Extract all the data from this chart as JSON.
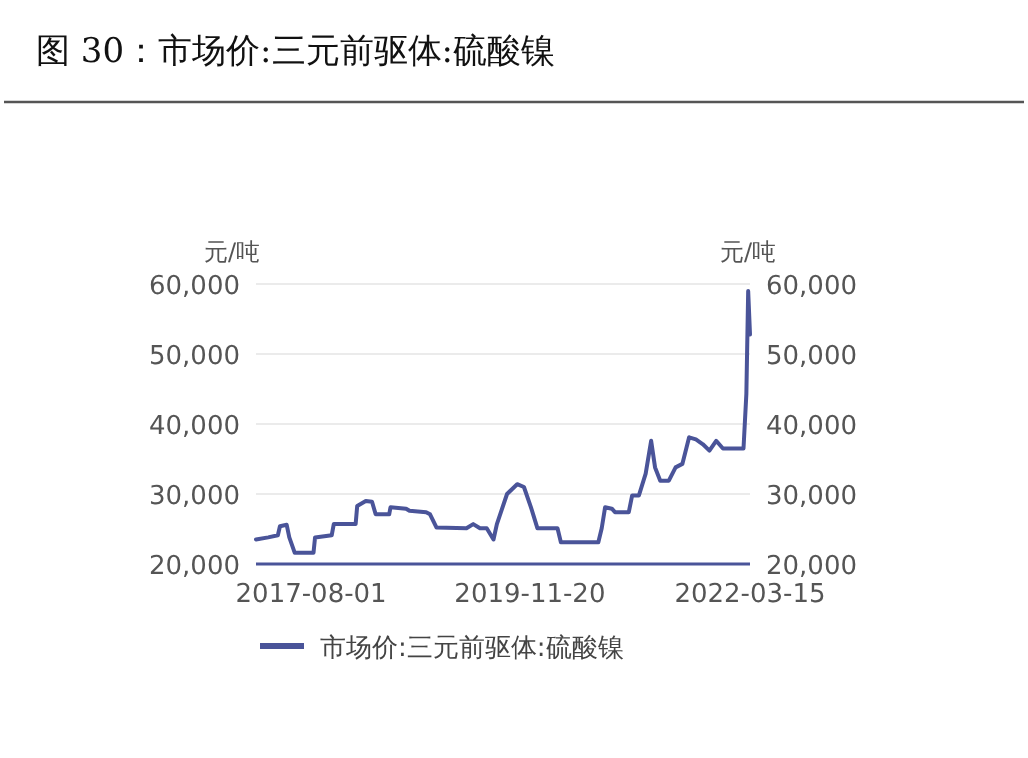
{
  "chart_data": {
    "type": "line",
    "title": "图 30：市场价:三元前驱体:硫酸镍",
    "ylabel": "元/吨",
    "y2label": "元/吨",
    "x": [
      "2017-01-01",
      "2017-02-17",
      "2017-03-26",
      "2017-04-03",
      "2017-04-29",
      "2017-05-09",
      "2017-05-30",
      "2017-08-10",
      "2017-08-16",
      "2017-10-19",
      "2017-10-27",
      "2018-01-19",
      "2018-01-25",
      "2018-02-27",
      "2018-03-23",
      "2018-04-06",
      "2018-05-28",
      "2018-06-02",
      "2018-08-01",
      "2018-08-14",
      "2018-10-17",
      "2018-11-01",
      "2018-11-26",
      "2019-03-21",
      "2019-04-16",
      "2019-05-12",
      "2019-06-07",
      "2019-07-03",
      "2019-07-16",
      "2019-08-24",
      "2019-10-02",
      "2019-10-28",
      "2019-11-24",
      "2019-12-19",
      "2020-03-05",
      "2020-03-18",
      "2020-08-09",
      "2020-08-22",
      "2020-09-04",
      "2020-09-30",
      "2020-10-12",
      "2020-12-04",
      "2020-12-17",
      "2021-01-12",
      "2021-02-07",
      "2021-02-28",
      "2021-03-15",
      "2021-04-04",
      "2021-05-07",
      "2021-06-02",
      "2021-06-28",
      "2021-07-24",
      "2021-08-19",
      "2021-09-15",
      "2021-10-10",
      "2021-11-05",
      "2021-12-01",
      "2022-02-18",
      "2022-03-01",
      "2022-03-08",
      "2022-03-15"
    ],
    "series": [
      {
        "name": "市场价:三元前驱体:硫酸镍",
        "color": "#4a5499",
        "values": [
          23500,
          23800,
          24100,
          25400,
          25600,
          23800,
          21600,
          21600,
          23800,
          24100,
          25700,
          25700,
          28300,
          29000,
          28900,
          27100,
          27100,
          28100,
          27900,
          27600,
          27400,
          27100,
          25200,
          25100,
          25700,
          25100,
          25100,
          23500,
          25700,
          30000,
          31400,
          31000,
          28100,
          25100,
          25100,
          23100,
          23100,
          25100,
          28100,
          27900,
          27400,
          27400,
          29800,
          29800,
          32900,
          37600,
          33800,
          31900,
          31900,
          33800,
          34300,
          38100,
          37800,
          37100,
          36200,
          37600,
          36500,
          36500,
          44300,
          59000,
          52800
        ]
      }
    ],
    "xlim": [
      "2017-01-01",
      "2022-03-15"
    ],
    "xticks": [
      "2017-08-01",
      "2019-11-20",
      "2022-03-15"
    ],
    "ylim": [
      20000,
      60000
    ],
    "yticks": [
      {
        "value": 20000,
        "label": "20,000"
      },
      {
        "value": 30000,
        "label": "30,000"
      },
      {
        "value": 40000,
        "label": "40,000"
      },
      {
        "value": 50000,
        "label": "50,000"
      },
      {
        "value": 60000,
        "label": "60,000"
      }
    ],
    "y2lim": [
      20000,
      60000
    ],
    "y2ticks": [
      {
        "value": 20000,
        "label": "20,000"
      },
      {
        "value": 30000,
        "label": "30,000"
      },
      {
        "value": 40000,
        "label": "40,000"
      },
      {
        "value": 50000,
        "label": "50,000"
      },
      {
        "value": 60000,
        "label": "60,000"
      }
    ],
    "grid": "y",
    "legend": "bottom"
  }
}
